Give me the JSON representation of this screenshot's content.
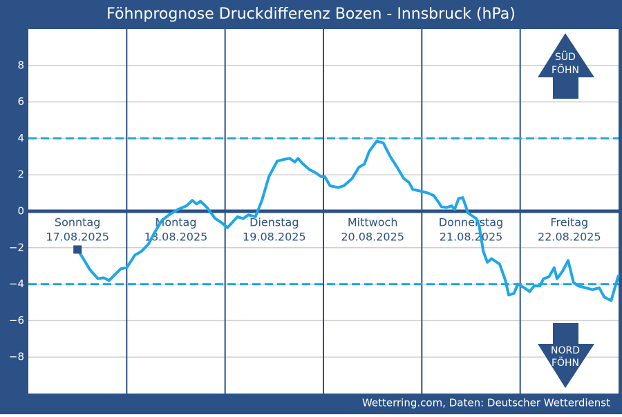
{
  "chart_data": {
    "type": "line",
    "title": "Föhnprognose Druckdifferenz Bozen - Innsbruck (hPa)",
    "source": "Wetterring.com, Daten: Deutscher Wetterdienst",
    "categories": [
      "Sonntag",
      "Montag",
      "Dienstag",
      "Mittwoch",
      "Donnerstag",
      "Freitag"
    ],
    "dates": [
      "17.08.2025",
      "18.08.2025",
      "19.08.2025",
      "20.08.2025",
      "21.08.2025",
      "22.08.2025"
    ],
    "xlim": [
      0,
      144
    ],
    "ylim": [
      -10,
      10
    ],
    "yticks": [
      -8,
      -6,
      -4,
      -2,
      0,
      2,
      4,
      6,
      8
    ],
    "yticks_labels": [
      {
        "value": -8,
        "label": "−8"
      },
      {
        "value": -6,
        "label": "−6"
      },
      {
        "value": -4,
        "label": "−4"
      },
      {
        "value": -2,
        "label": "−2"
      }
    ],
    "grid": true,
    "reference_lines": [
      {
        "value": 4,
        "style": "dashed",
        "color": "#1ea7e8"
      },
      {
        "value": -4,
        "style": "dashed",
        "color": "#1ea7e8"
      },
      {
        "value": 0,
        "style": "solid",
        "color": "#2b5186"
      }
    ],
    "annotations": [
      {
        "lines": [
          "SÜD",
          "FÖHN"
        ],
        "direction": "up"
      },
      {
        "lines": [
          "NORD",
          "FÖHN"
        ],
        "direction": "down"
      }
    ],
    "series": [
      {
        "color": "#1ea7e8",
        "marker_first": true,
        "x": [
          12,
          13.4,
          15,
          17,
          18.4,
          19.7,
          21,
          22.6,
          24,
          26,
          27.6,
          29.3,
          31,
          32.6,
          34.3,
          36.5,
          38.6,
          40,
          41,
          42,
          43.6,
          45.6,
          47,
          48.6,
          51,
          52.4,
          53.7,
          55.4,
          57,
          58.7,
          60.7,
          62.4,
          63.8,
          65,
          65.8,
          67,
          68.5,
          70.2,
          71.4,
          72.3,
          73.6,
          75.6,
          77,
          79,
          80.6,
          82,
          83.2,
          85,
          86.6,
          88.3,
          90,
          91.6,
          92.8,
          93.8,
          95.8,
          97.5,
          99,
          100.8,
          102,
          103.3,
          104,
          105,
          106,
          107.3,
          109.3,
          110,
          111,
          112,
          113,
          115,
          116.4,
          117.2,
          118.5,
          119.4,
          121,
          122.3,
          123.4,
          124.8,
          125.7,
          127,
          128.3,
          129,
          130.3,
          131.7,
          133,
          134.2,
          136,
          137.6,
          139.3,
          140.5,
          142.2,
          144
        ],
        "values": [
          -2.1,
          -2.6,
          -3.2,
          -3.7,
          -3.65,
          -3.8,
          -3.5,
          -3.15,
          -3.1,
          -2.4,
          -2.2,
          -1.8,
          -1.1,
          -0.5,
          -0.2,
          0.1,
          0.3,
          0.6,
          0.4,
          0.55,
          0.2,
          -0.4,
          -0.6,
          -0.9,
          -0.3,
          -0.4,
          -0.2,
          -0.3,
          0.6,
          1.9,
          2.75,
          2.85,
          2.9,
          2.7,
          2.9,
          2.6,
          2.3,
          2.1,
          1.9,
          1.9,
          1.4,
          1.3,
          1.4,
          1.8,
          2.4,
          2.6,
          3.3,
          3.85,
          3.75,
          3.0,
          2.4,
          1.8,
          1.6,
          1.2,
          1.1,
          1.0,
          0.85,
          0.25,
          0.2,
          0.3,
          0.1,
          0.7,
          0.75,
          -0.1,
          -0.4,
          -0.8,
          -2.2,
          -2.8,
          -2.6,
          -2.9,
          -3.8,
          -4.6,
          -4.5,
          -4.0,
          -4.2,
          -4.4,
          -4.1,
          -4.1,
          -3.7,
          -3.6,
          -3.1,
          -3.7,
          -3.3,
          -2.7,
          -3.9,
          -4.1,
          -4.2,
          -4.3,
          -4.2,
          -4.7,
          -4.9,
          -3.5
        ]
      }
    ]
  }
}
